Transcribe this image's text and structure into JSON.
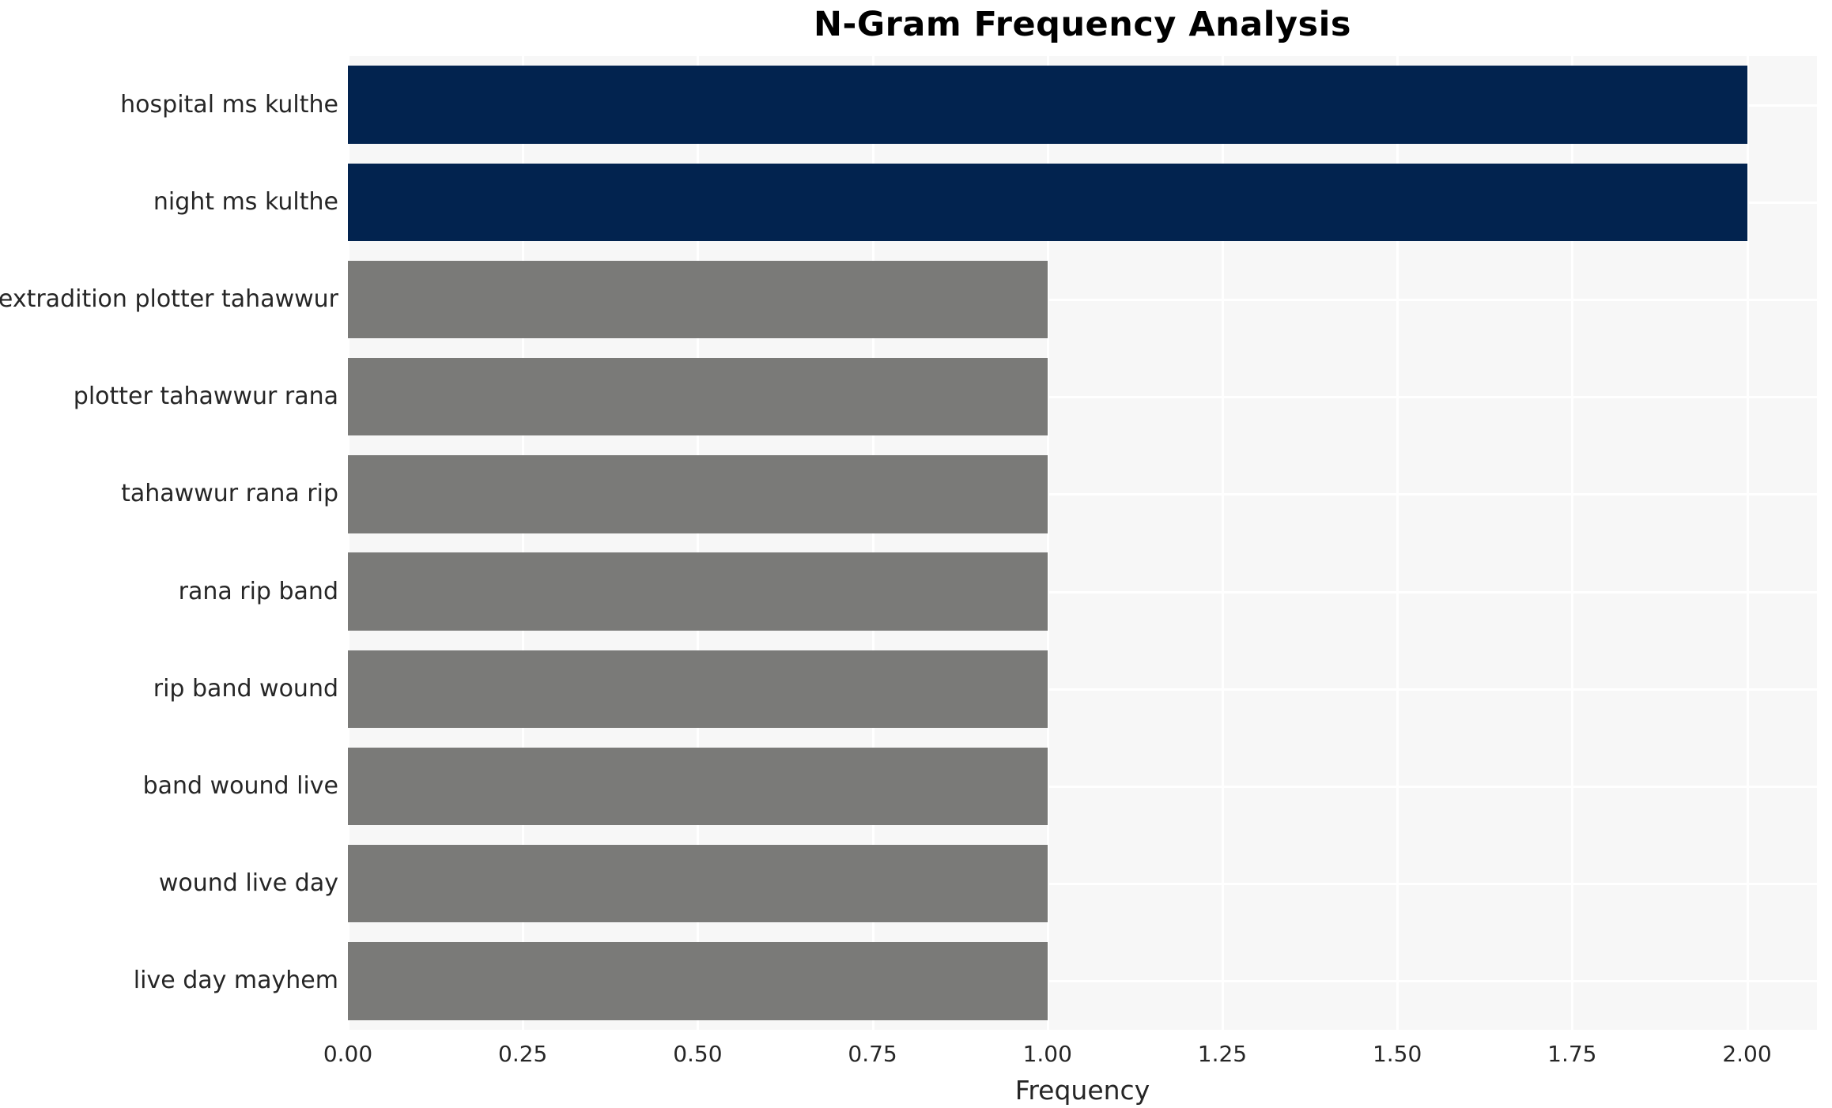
{
  "chart_data": {
    "type": "bar",
    "orientation": "horizontal",
    "title": "N-Gram Frequency Analysis",
    "xlabel": "Frequency",
    "ylabel": "",
    "categories": [
      "hospital ms kulthe",
      "night ms kulthe",
      "extradition plotter tahawwur",
      "plotter tahawwur rana",
      "tahawwur rana rip",
      "rana rip band",
      "rip band wound",
      "band wound live",
      "wound live day",
      "live day mayhem"
    ],
    "values": [
      2,
      2,
      1,
      1,
      1,
      1,
      1,
      1,
      1,
      1
    ],
    "bar_colors": [
      "#02234f",
      "#02234f",
      "#7a7a78",
      "#7a7a78",
      "#7a7a78",
      "#7a7a78",
      "#7a7a78",
      "#7a7a78",
      "#7a7a78",
      "#7a7a78"
    ],
    "xlim": [
      0,
      2.1
    ],
    "xticks": [
      {
        "value": 0.0,
        "label": "0.00"
      },
      {
        "value": 0.25,
        "label": "0.25"
      },
      {
        "value": 0.5,
        "label": "0.50"
      },
      {
        "value": 0.75,
        "label": "0.75"
      },
      {
        "value": 1.0,
        "label": "1.00"
      },
      {
        "value": 1.25,
        "label": "1.25"
      },
      {
        "value": 1.5,
        "label": "1.50"
      },
      {
        "value": 1.75,
        "label": "1.75"
      },
      {
        "value": 2.0,
        "label": "2.00"
      }
    ],
    "grid": true,
    "legend": "none",
    "colors": {
      "plot_background": "#f7f7f7",
      "figure_background": "#ffffff",
      "gridline": "#ffffff",
      "tick_text": "#262626",
      "title_text": "#000000"
    }
  }
}
